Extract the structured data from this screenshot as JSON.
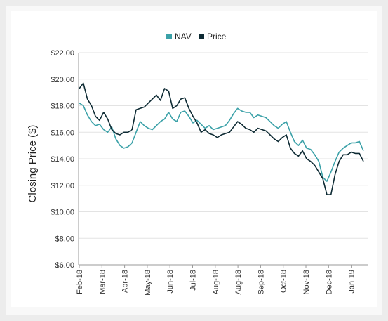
{
  "chart_data": {
    "type": "line",
    "ylabel": "Closing Price ($)",
    "ylim": [
      6,
      22
    ],
    "y_ticks": [
      "$6.00",
      "$8.00",
      "$10.00",
      "$12.00",
      "$14.00",
      "$16.00",
      "$18.00",
      "$20.00",
      "$22.00"
    ],
    "y_tick_values": [
      6,
      8,
      10,
      12,
      14,
      16,
      18,
      20,
      22
    ],
    "x_ticks": [
      "Feb-18",
      "Mar-18",
      "Apr-18",
      "May-18",
      "Jun-18",
      "Jul-18",
      "Aug-18",
      "Aug-18",
      "Sep-18",
      "Oct-18",
      "Nov-18",
      "Dec-18",
      "Jan-19"
    ],
    "grid": true,
    "legend_position": "top",
    "series": [
      {
        "name": "NAV",
        "color": "#3ba1a8",
        "values": [
          18.2,
          18.0,
          17.3,
          16.8,
          16.5,
          16.6,
          16.2,
          16.0,
          16.4,
          15.5,
          15.0,
          14.8,
          14.9,
          15.2,
          16.0,
          16.8,
          16.5,
          16.3,
          16.2,
          16.5,
          16.8,
          17.0,
          17.5,
          17.0,
          16.8,
          17.5,
          17.6,
          17.2,
          16.7,
          16.9,
          16.6,
          16.3,
          16.5,
          16.2,
          16.3,
          16.4,
          16.5,
          16.9,
          17.4,
          17.8,
          17.6,
          17.5,
          17.5,
          17.1,
          17.3,
          17.2,
          17.1,
          16.8,
          16.5,
          16.3,
          16.6,
          16.8,
          16.0,
          15.3,
          15.0,
          15.4,
          14.8,
          14.7,
          14.3,
          13.8,
          12.6,
          12.3,
          13.0,
          13.8,
          14.5,
          14.8,
          15.0,
          15.2,
          15.2,
          15.3,
          14.6
        ]
      },
      {
        "name": "Price",
        "color": "#0d2a33",
        "values": [
          19.3,
          19.7,
          18.5,
          18.0,
          17.2,
          16.9,
          17.5,
          17.0,
          16.2,
          15.9,
          15.8,
          16.0,
          16.0,
          16.2,
          17.7,
          17.8,
          17.9,
          18.2,
          18.5,
          18.8,
          18.4,
          19.3,
          19.1,
          17.8,
          18.0,
          18.5,
          18.6,
          17.8,
          17.2,
          16.7,
          16.0,
          16.2,
          15.9,
          15.8,
          15.6,
          15.8,
          15.9,
          16.0,
          16.4,
          16.8,
          16.6,
          16.3,
          16.2,
          16.0,
          16.3,
          16.2,
          16.1,
          15.8,
          15.5,
          15.3,
          15.6,
          15.8,
          14.8,
          14.4,
          14.2,
          14.6,
          14.0,
          13.8,
          13.5,
          13.0,
          12.5,
          11.3,
          11.3,
          12.8,
          13.8,
          14.3,
          14.3,
          14.5,
          14.4,
          14.4,
          13.8
        ]
      }
    ]
  }
}
